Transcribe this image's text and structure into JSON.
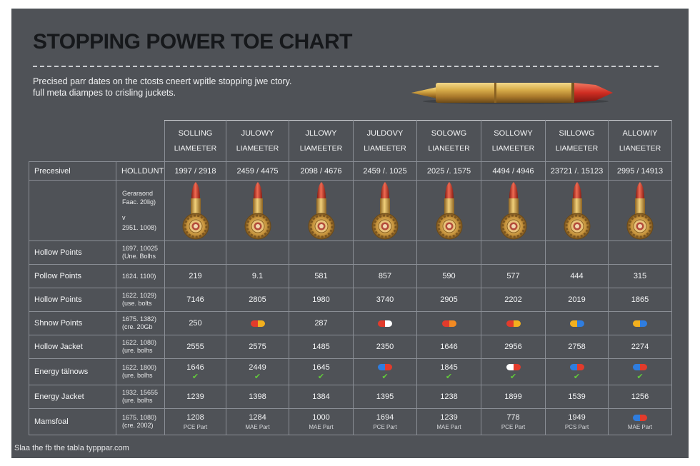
{
  "title": "STOPPING POWER TOE CHART",
  "subtitle_line1": "Precised parr dates on the ctosts cneert wpitle stopping jwe ctory.",
  "subtitle_line2": "full meta diampes to crisling juckets.",
  "columns": [
    {
      "name": "SOLLING",
      "sub": "LIAMEETER",
      "range": "1997 / 2918"
    },
    {
      "name": "JULOWY",
      "sub": "LIAMEETER",
      "range": "2459 / 4475"
    },
    {
      "name": "JLLOWY",
      "sub": "LIAMEETER",
      "range": "2098 / 4676"
    },
    {
      "name": "JULDOVY",
      "sub": "LIAMEETER",
      "range": "2459 /. 1025"
    },
    {
      "name": "SOLOWG",
      "sub": "LIANEETER",
      "range": "2025 /. 1575"
    },
    {
      "name": "SOLLOWY",
      "sub": "LIAMEETER",
      "range": "4494 / 4946"
    },
    {
      "name": "SILLOWG",
      "sub": "LIAMEETER",
      "range": "23721 /. 15123"
    },
    {
      "name": "ALLOWIY",
      "sub": "LIANEETER",
      "range": "2995 / 14913"
    }
  ],
  "header_row": {
    "label": "Precesivel",
    "meta": "HOLLDUNT"
  },
  "icon_row": {
    "meta1": "Geraraond",
    "meta2": "Faac. 20lig)",
    "meta3": "v",
    "meta4": "2951. 1008)"
  },
  "rows": [
    {
      "label": "Hollow Points",
      "meta1": "1697. 10025",
      "meta2": "(Une. Bolhs",
      "cells": [
        {},
        {},
        {},
        {},
        {},
        {},
        {},
        {}
      ]
    },
    {
      "label": "Pollow Points",
      "meta1": "1624. 1100)",
      "meta2": "",
      "cells": [
        {
          "v": "219"
        },
        {
          "v": "9.1"
        },
        {
          "v": "581"
        },
        {
          "v": "857"
        },
        {
          "v": "590"
        },
        {
          "v": "577"
        },
        {
          "v": "444"
        },
        {
          "v": "315"
        }
      ]
    },
    {
      "label": "Hollow Points",
      "meta1": "1622. 1029)",
      "meta2": "(use. bolts",
      "cells": [
        {
          "v": "7146"
        },
        {
          "v": "2805"
        },
        {
          "v": "1980"
        },
        {
          "v": "3740"
        },
        {
          "v": "2905"
        },
        {
          "v": "2202"
        },
        {
          "v": "2019"
        },
        {
          "v": "1865"
        }
      ]
    },
    {
      "label": "Shnow Points",
      "meta1": "1675. 1382)",
      "meta2": "(cre. 20Gb",
      "cells": [
        {
          "v": "250"
        },
        {
          "pill": [
            "#e23b2c",
            "#f2b01e"
          ]
        },
        {
          "v": "287"
        },
        {
          "pill": [
            "#e23b2c",
            "#ffffff"
          ]
        },
        {
          "pill": [
            "#e23b2c",
            "#f28a22"
          ]
        },
        {
          "pill": [
            "#e23b2c",
            "#f2b01e"
          ]
        },
        {
          "pill": [
            "#f2b01e",
            "#2f7ddf"
          ]
        },
        {
          "pill": [
            "#f2b01e",
            "#2f7ddf"
          ]
        }
      ]
    },
    {
      "label": "Hollow Jacket",
      "meta1": "1622. 1080)",
      "meta2": "(ure. bolhs",
      "cells": [
        {
          "v": "2555"
        },
        {
          "v": "2575"
        },
        {
          "v": "1485"
        },
        {
          "v": "2350"
        },
        {
          "v": "1646"
        },
        {
          "v": "2956"
        },
        {
          "v": "2758"
        },
        {
          "v": "2274"
        }
      ]
    },
    {
      "label": "Energy tälnows",
      "meta1": "1622. 1800)",
      "meta2": "(ure. bolhs",
      "cells": [
        {
          "v": "1646",
          "check": true
        },
        {
          "v": "2449",
          "check": true
        },
        {
          "v": "1645",
          "check": true
        },
        {
          "pill": [
            "#2f7ddf",
            "#e23b2c"
          ],
          "check": true
        },
        {
          "v": "1845",
          "check": true
        },
        {
          "pill": [
            "#ffffff",
            "#e23b2c"
          ],
          "check": true
        },
        {
          "pill": [
            "#2f7ddf",
            "#e23b2c"
          ],
          "check": true
        },
        {
          "pill": [
            "#2f7ddf",
            "#e23b2c"
          ],
          "check": true
        }
      ]
    },
    {
      "label": "Energy Jacket",
      "meta1": "1932. 15655",
      "meta2": "(ure. bolhs",
      "cells": [
        {
          "v": "1239"
        },
        {
          "v": "1398"
        },
        {
          "v": "1384"
        },
        {
          "v": "1395"
        },
        {
          "v": "1238"
        },
        {
          "v": "1899"
        },
        {
          "v": "1539"
        },
        {
          "v": "1256"
        }
      ]
    },
    {
      "label": "Mamsfoal",
      "meta1": "1675. 1080)",
      "meta2": "(cre. 2002)",
      "cells": [
        {
          "v": "1208",
          "s": "PCE Part"
        },
        {
          "v": "1284",
          "s": "MAE Part"
        },
        {
          "v": "1000",
          "s": "MAE Part"
        },
        {
          "v": "1694",
          "s": "PCE Part"
        },
        {
          "v": "1239",
          "s": "MAE Part"
        },
        {
          "v": "778",
          "s": "PCE Part"
        },
        {
          "v": "1949",
          "s": "PCS Part"
        },
        {
          "pill": [
            "#2f7ddf",
            "#e23b2c"
          ],
          "s": "MAE Part"
        }
      ]
    }
  ],
  "footer": "Slaa the fb the tabla typppar.com",
  "colors": {
    "background": "#4f5257",
    "tip_red": "#d8332b",
    "brass": "#c99a36",
    "check": "#62c93c"
  },
  "icons": {
    "hero": "bullet-icon",
    "cell": "cartridge-icon",
    "check": "check-icon"
  }
}
